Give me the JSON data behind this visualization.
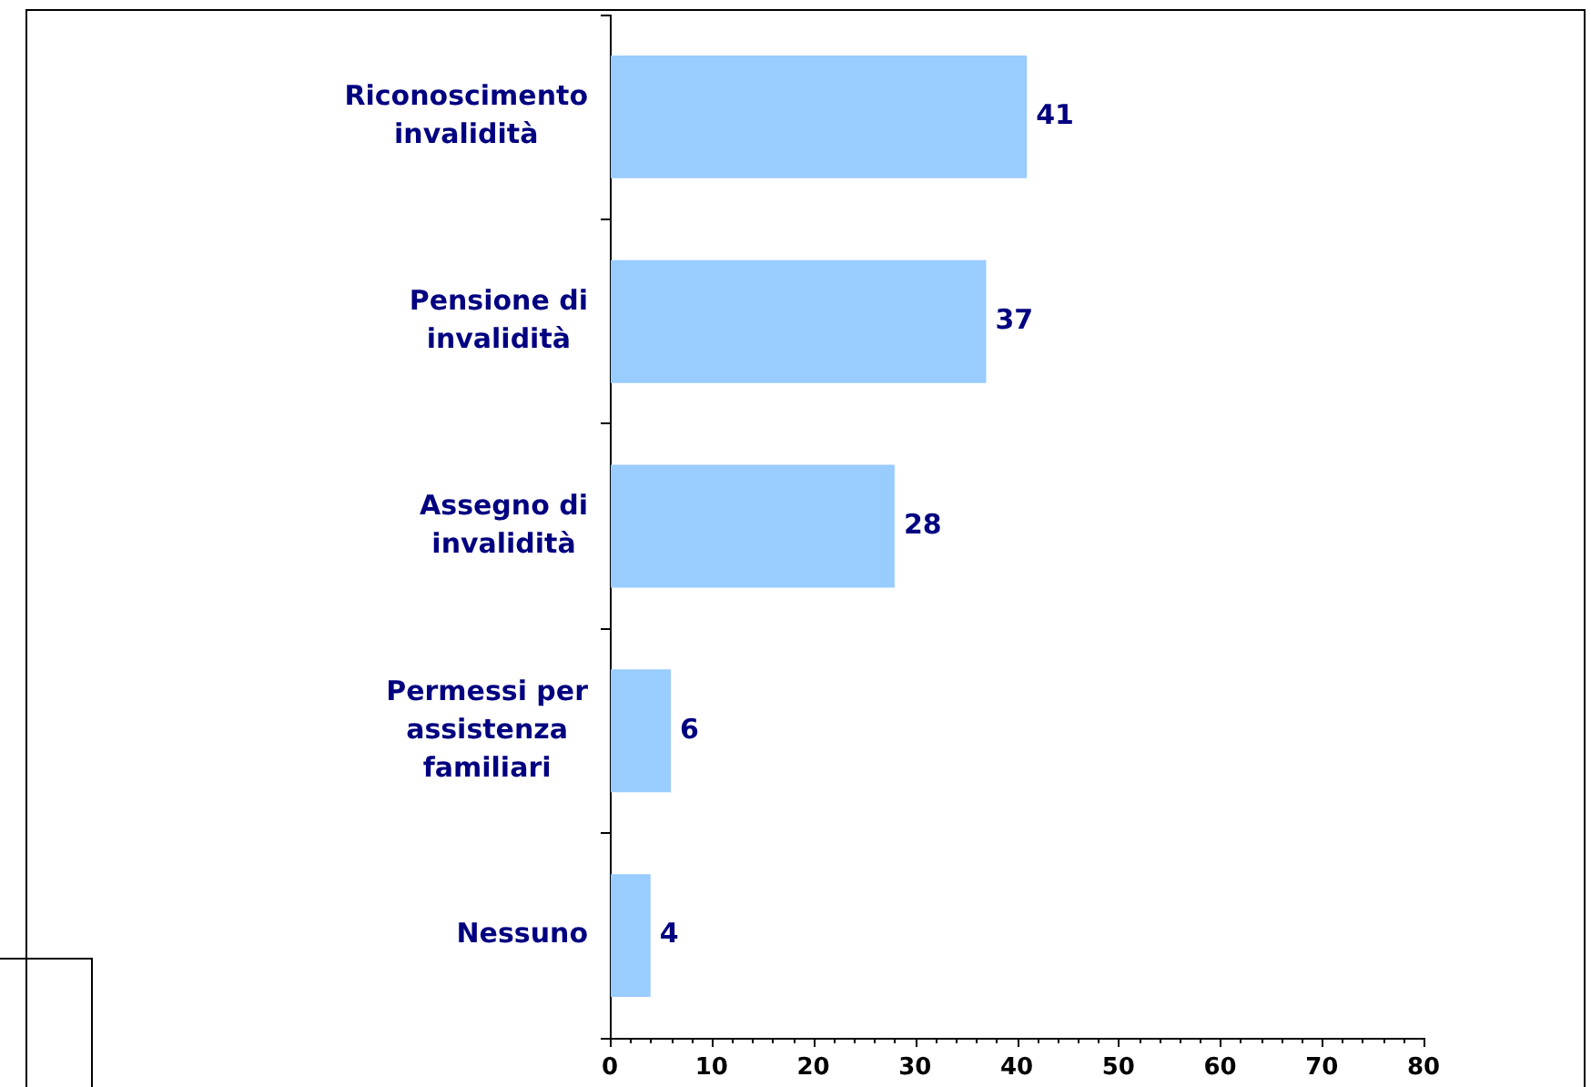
{
  "chart_data": {
    "type": "bar",
    "orientation": "horizontal",
    "categories": [
      "Riconoscimento invalidità",
      "Pensione di invalidità",
      "Assegno di invalidità",
      "Permessi per assistenza familiari",
      "Nessuno"
    ],
    "values": [
      41,
      37,
      28,
      6,
      4
    ],
    "color": "#99ccff",
    "xlim": [
      0,
      80
    ],
    "xticks": [
      0,
      {
        "value": 2,
        "label": null
      },
      {
        "value": 4,
        "label": null
      },
      {
        "value": 6,
        "label": null
      },
      {
        "value": 8,
        "label": null
      },
      10,
      {
        "value": 12,
        "label": null
      },
      {
        "value": 14,
        "label": null
      },
      {
        "value": 16,
        "label": null
      },
      {
        "value": 18,
        "label": null
      },
      20,
      {
        "value": 22,
        "label": null
      },
      {
        "value": 24,
        "label": null
      },
      {
        "value": 26,
        "label": null
      },
      {
        "value": 28,
        "label": null
      },
      30,
      {
        "value": 32,
        "label": null
      },
      {
        "value": 34,
        "label": null
      },
      {
        "value": 36,
        "label": null
      },
      {
        "value": 38,
        "label": null
      },
      40,
      {
        "value": 42,
        "label": null
      },
      {
        "value": 44,
        "label": null
      },
      {
        "value": 46,
        "label": null
      },
      {
        "value": 48,
        "label": null
      },
      50,
      {
        "value": 52,
        "label": null
      },
      {
        "value": 54,
        "label": null
      },
      {
        "value": 56,
        "label": null
      },
      {
        "value": 58,
        "label": null
      },
      60,
      {
        "value": 62,
        "label": null
      },
      {
        "value": 64,
        "label": null
      },
      {
        "value": 66,
        "label": null
      },
      {
        "value": 68,
        "label": null
      },
      70,
      {
        "value": 72,
        "label": null
      },
      {
        "value": 74,
        "label": null
      },
      {
        "value": 76,
        "label": null
      },
      {
        "value": 78,
        "label": null
      },
      80
    ],
    "grid": false,
    "data_labels": true
  }
}
